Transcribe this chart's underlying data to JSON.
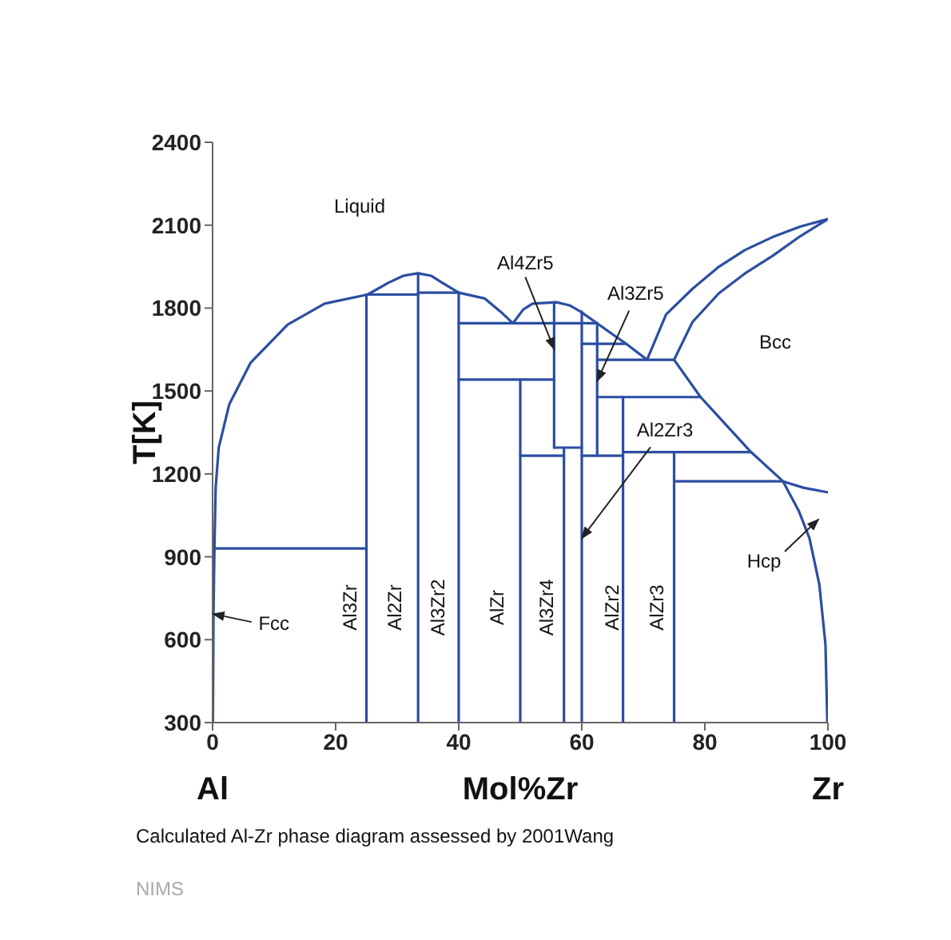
{
  "chart_data": {
    "type": "line",
    "xlabel": "Mol%Zr",
    "ylabel": "T[K]",
    "xlim": [
      0,
      100
    ],
    "xticks": [
      0,
      20,
      40,
      60,
      80,
      100
    ],
    "ylim": [
      300,
      2400
    ],
    "yticks": [
      300,
      600,
      900,
      1200,
      1500,
      1800,
      2100,
      2400
    ],
    "annotations": [
      "Liquid",
      "Bcc",
      {
        "text": "Al4Zr5",
        "x": 55.5,
        "y": 1652
      },
      {
        "text": "Al3Zr5",
        "x": 62.5,
        "y": 1536
      },
      {
        "text": "Al2Zr3",
        "x": 60,
        "y": 967
      },
      "Hcp",
      {
        "text": "Fcc",
        "x": 0.1,
        "y": 693
      },
      "Al3Zr",
      "Al2Zr",
      "Al3Zr2",
      "AlZr",
      "Al3Zr4",
      "AlZr2",
      "AlZr3",
      "Al",
      "Zr",
      "Calculated Al-Zr phase diagram assessed by 2001Wang",
      "NIMS"
    ],
    "series": [
      {
        "color": "#2b4ea2",
        "x": [
          0.3,
          25
        ],
        "values": [
          930,
          930
        ]
      },
      {
        "color": "#2b4ea2",
        "x": [
          25,
          25
        ],
        "values": [
          300,
          1849
        ]
      },
      {
        "color": "#2b4ea2",
        "x": [
          25.2,
          28.6,
          31,
          33.4,
          35.5,
          37.3,
          40
        ],
        "values": [
          1849,
          1892,
          1917,
          1926,
          1917,
          1892,
          1856
        ]
      },
      {
        "color": "#2b4ea2",
        "x": [
          33.4,
          33.4
        ],
        "values": [
          300,
          1926
        ]
      },
      {
        "color": "#2b4ea2",
        "x": [
          0.05,
          0.15,
          0.3,
          0.5,
          1,
          2.7,
          6.2,
          12.2,
          18.2,
          25.2,
          33.4,
          33.4,
          40,
          44.2,
          46.8,
          48.8,
          50.5,
          52,
          55.9,
          58,
          59.8,
          62.5,
          65,
          67.2,
          70.6,
          73.7,
          78,
          82.3,
          86.5,
          91,
          95.5,
          100,
          95.5,
          91,
          86.5,
          82.3,
          78,
          75,
          79.3,
          87.5,
          92.7,
          95.3,
          97,
          98.6,
          99.6,
          99.9
        ],
        "values": [
          300,
          700,
          930,
          1150,
          1295,
          1451,
          1603,
          1740,
          1816,
          1849,
          1849,
          1856,
          1856,
          1835,
          1787,
          1745,
          1795,
          1816,
          1821,
          1810,
          1787,
          1745,
          1705,
          1671,
          1613,
          1777,
          1870,
          1950,
          2010,
          2057,
          2095,
          2122,
          2060,
          1989,
          1925,
          1854,
          1750,
          1613,
          1478,
          1279,
          1173,
          1064,
          967,
          800,
          583,
          300
        ]
      },
      {
        "color": "#2b4ea2",
        "x": [
          40,
          40
        ],
        "values": [
          300,
          1856
        ]
      },
      {
        "color": "#2b4ea2",
        "x": [
          40,
          62.5
        ],
        "values": [
          1745,
          1745
        ]
      },
      {
        "color": "#2b4ea2",
        "x": [
          40,
          55.5
        ],
        "values": [
          1541,
          1541
        ]
      },
      {
        "color": "#2b4ea2",
        "x": [
          55.5,
          55.5
        ],
        "values": [
          1295,
          1821
        ]
      },
      {
        "color": "#2b4ea2",
        "x": [
          55.5,
          60
        ],
        "values": [
          1295,
          1295
        ]
      },
      {
        "color": "#2b4ea2",
        "x": [
          60,
          60
        ],
        "values": [
          300,
          1787
        ]
      },
      {
        "color": "#2b4ea2",
        "x": [
          57.1,
          57.1
        ],
        "values": [
          300,
          1295
        ]
      },
      {
        "color": "#2b4ea2",
        "x": [
          50,
          57.1
        ],
        "values": [
          1266,
          1266
        ]
      },
      {
        "color": "#2b4ea2",
        "x": [
          60,
          66.7
        ],
        "values": [
          1266,
          1266
        ]
      },
      {
        "color": "#2b4ea2",
        "x": [
          50,
          50
        ],
        "values": [
          300,
          1541
        ]
      },
      {
        "color": "#2b4ea2",
        "x": [
          62.5,
          62.5
        ],
        "values": [
          1266,
          1745
        ]
      },
      {
        "color": "#2b4ea2",
        "x": [
          60,
          67.2
        ],
        "values": [
          1671,
          1671
        ]
      },
      {
        "color": "#2b4ea2",
        "x": [
          62.5,
          75
        ],
        "values": [
          1613,
          1613
        ]
      },
      {
        "color": "#2b4ea2",
        "x": [
          62.5,
          79.3
        ],
        "values": [
          1478,
          1478
        ]
      },
      {
        "color": "#2b4ea2",
        "x": [
          66.7,
          66.7
        ],
        "values": [
          300,
          1478
        ]
      },
      {
        "color": "#2b4ea2",
        "x": [
          66.7,
          87.5
        ],
        "values": [
          1279,
          1279
        ]
      },
      {
        "color": "#2b4ea2",
        "x": [
          75,
          75
        ],
        "values": [
          300,
          1279
        ]
      },
      {
        "color": "#2b4ea2",
        "x": [
          75,
          92.7,
          96,
          100
        ],
        "values": [
          1173,
          1173,
          1150,
          1133
        ]
      }
    ]
  }
}
